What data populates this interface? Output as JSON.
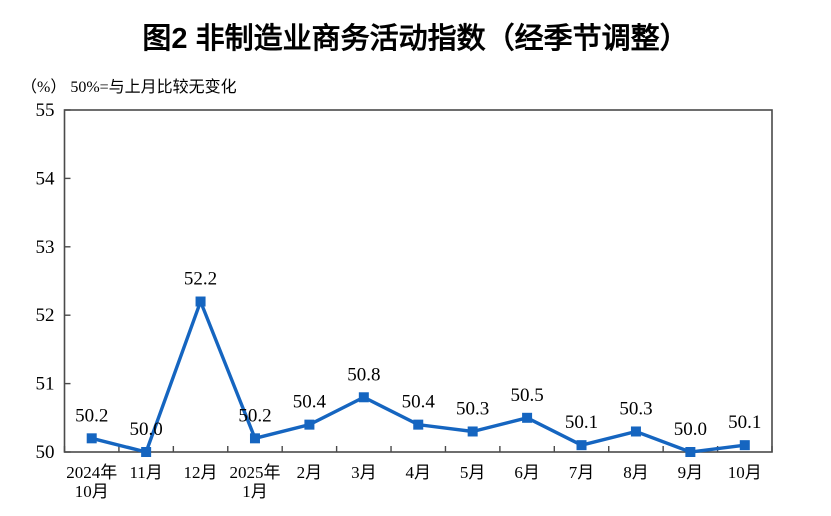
{
  "chart_data": {
    "type": "line",
    "title": "图2 非制造业商务活动指数（经季节调整）",
    "unit_note": "（%） 50%=与上月比较无变化",
    "categories": [
      "2024年\n10月",
      "11月",
      "12月",
      "2025年\n1月",
      "2月",
      "3月",
      "4月",
      "5月",
      "6月",
      "7月",
      "8月",
      "9月",
      "10月"
    ],
    "values": [
      50.2,
      50.0,
      52.2,
      50.2,
      50.4,
      50.8,
      50.4,
      50.3,
      50.5,
      50.1,
      50.3,
      50.0,
      50.1
    ],
    "labels": [
      "50.2",
      "50.0",
      "52.2",
      "50.2",
      "50.4",
      "50.8",
      "50.4",
      "50.3",
      "50.5",
      "50.1",
      "50.3",
      "50.0",
      "50.1"
    ],
    "ylim": [
      50,
      55
    ],
    "yticks": [
      50,
      51,
      52,
      53,
      54,
      55
    ],
    "xlabel": "",
    "ylabel": "%",
    "grid": false,
    "legend": "none",
    "line_color": "#1565C0",
    "marker": "square",
    "frame_color": "#4a4a4a",
    "text_color": "#000000"
  }
}
